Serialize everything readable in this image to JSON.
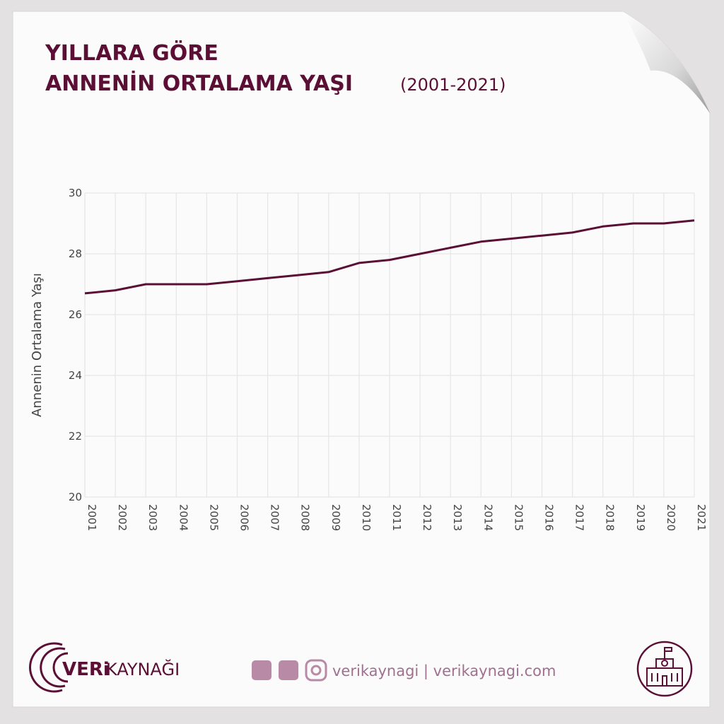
{
  "chart_data": {
    "type": "line",
    "title": [
      "YILLARA GÖRE",
      "ANNENİN ORTALAMA YAŞI"
    ],
    "subtitle": "(2001-2021)",
    "y_label": "Annenin Ortalama Yaşı",
    "x": [
      2001,
      2002,
      2003,
      2004,
      2005,
      2006,
      2007,
      2008,
      2009,
      2010,
      2011,
      2012,
      2013,
      2014,
      2015,
      2016,
      2017,
      2018,
      2019,
      2020,
      2021
    ],
    "values": [
      26.7,
      26.8,
      27.0,
      27.0,
      27.0,
      27.1,
      27.2,
      27.3,
      27.4,
      27.7,
      27.8,
      28.0,
      28.2,
      28.4,
      28.5,
      28.6,
      28.7,
      28.9,
      29.0,
      29.0,
      29.1
    ],
    "color": "#5b0f35",
    "xlim": [
      2001,
      2021
    ],
    "xticks": [
      2001,
      2002,
      2003,
      2004,
      2005,
      2006,
      2007,
      2008,
      2009,
      2010,
      2011,
      2012,
      2013,
      2014,
      2015,
      2016,
      2017,
      2018,
      2019,
      2020,
      2021
    ],
    "ylim": [
      20,
      30
    ],
    "yticks": [
      20,
      22,
      24,
      26,
      28,
      30
    ],
    "grid": true
  },
  "footer": {
    "brand_bold": "VERi",
    "brand_light": "KAYNAĞI",
    "links": "verikaynagi | verikaynagi.com"
  }
}
